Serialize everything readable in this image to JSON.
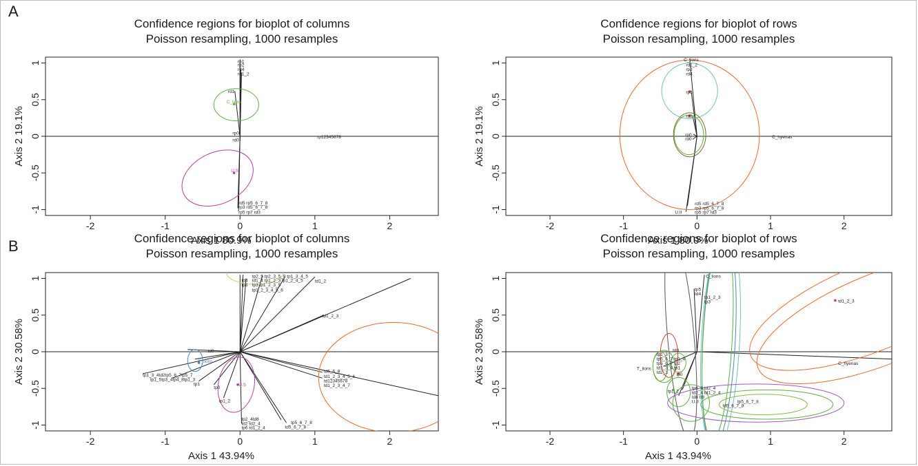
{
  "panel_labels": {
    "a": "A",
    "b": "B"
  },
  "chart_data": [
    {
      "type": "scatter",
      "title": "Confidence regions for bioplot of columns",
      "subtitle": "Poisson resampling, 1000 resamples",
      "xlabel": "Axis 1 80.9%",
      "ylabel": "Axis 2 19.1%",
      "xlim": [
        -2.6,
        2.65
      ],
      "ylim": [
        -1.08,
        1.08
      ],
      "xticks": [
        -2,
        -1,
        0,
        1,
        2
      ],
      "yticks": [
        -1.0,
        -0.5,
        0.0,
        0.5,
        1.0
      ],
      "hline": 0,
      "rays": [
        {
          "x": 0.0,
          "y": 1.05
        },
        {
          "x": 0.0,
          "y": 0.98
        },
        {
          "x": 0.01,
          "y": 0.91
        },
        {
          "x": 0.02,
          "y": 0.87
        },
        {
          "x": -0.07,
          "y": 0.62
        },
        {
          "x": -0.01,
          "y": 0.05
        },
        {
          "x": 0.0,
          "y": -0.04
        },
        {
          "x": -0.02,
          "y": -1.02
        },
        {
          "x": -0.03,
          "y": -0.98
        }
      ],
      "ellipses": [
        {
          "cx": -0.05,
          "cy": 0.43,
          "rx": 0.3,
          "ry": 0.22,
          "rot": 0,
          "color": "#5bb040"
        },
        {
          "cx": -0.3,
          "cy": -0.57,
          "rx": 0.5,
          "ry": 0.35,
          "rot": 25,
          "color": "#b83ea4"
        }
      ],
      "labels": [
        {
          "text": "rp1",
          "x": -0.03,
          "y": 1.03
        },
        {
          "text": "rp2",
          "x": -0.03,
          "y": 0.98
        },
        {
          "text": "rd4",
          "x": -0.03,
          "y": 0.92
        },
        {
          "text": "rd1_2",
          "x": -0.03,
          "y": 0.86
        },
        {
          "text": "rd1",
          "x": -0.16,
          "y": 0.62
        },
        {
          "text": "C_lions",
          "x": -0.18,
          "y": 0.48,
          "color": "#5bb040"
        },
        {
          "text": "rp0",
          "x": -0.1,
          "y": 0.05
        },
        {
          "text": "rd0",
          "x": -0.1,
          "y": -0.04
        },
        {
          "text": "rp12345678",
          "x": 1.03,
          "y": 0.0
        },
        {
          "text": "U.S",
          "x": -0.12,
          "y": -0.46,
          "color": "#b83ea4"
        },
        {
          "text": "rd5 rp5_6_7_8",
          "x": -0.02,
          "y": -0.9
        },
        {
          "text": "rp3 rd5_6_7_8",
          "x": -0.02,
          "y": -0.96
        },
        {
          "text": "rp5 rp7 rd3",
          "x": -0.02,
          "y": -1.03
        }
      ],
      "points": [
        {
          "x": -0.08,
          "y": 0.44,
          "color": "#5bb040"
        },
        {
          "x": -0.08,
          "y": -0.5,
          "color": "#b83ea4"
        }
      ]
    },
    {
      "type": "scatter",
      "title": "Confidence regions for bioplot of rows",
      "subtitle": "Poisson resampling, 1000 resamples",
      "xlabel": "Axis 1 80.9%",
      "ylabel": "Axis 2 19.1%",
      "xlim": [
        -2.6,
        2.65
      ],
      "ylim": [
        -1.08,
        1.08
      ],
      "xticks": [
        -2,
        -1,
        0,
        1,
        2
      ],
      "yticks": [
        -1.0,
        -0.5,
        0.0,
        0.5,
        1.0
      ],
      "hline": 0,
      "rays": [
        {
          "x": -0.1,
          "y": 1.06
        },
        {
          "x": -0.08,
          "y": 0.62
        },
        {
          "x": -0.06,
          "y": 0.28
        },
        {
          "x": -0.05,
          "y": 0.03
        },
        {
          "x": -0.06,
          "y": -0.04
        },
        {
          "x": -0.15,
          "y": -1.03
        },
        {
          "x": -0.13,
          "y": -0.95
        }
      ],
      "ellipses": [
        {
          "cx": -0.1,
          "cy": 0.62,
          "rx": 0.38,
          "ry": 0.38,
          "rot": 0,
          "color": "#6fc2b8"
        },
        {
          "cx": -0.1,
          "cy": 0.02,
          "rx": 0.95,
          "ry": 1.02,
          "rot": 0,
          "color": "#f06a2d"
        },
        {
          "cx": -0.1,
          "cy": 0.02,
          "rx": 0.22,
          "ry": 0.3,
          "rot": 0,
          "color": "#7e6a2c"
        },
        {
          "cx": -0.11,
          "cy": 0.02,
          "rx": 0.2,
          "ry": 0.27,
          "rot": 0,
          "color": "#5bb040"
        }
      ],
      "labels": [
        {
          "text": "C_lions",
          "x": -0.18,
          "y": 1.05
        },
        {
          "text": "rd1_2",
          "x": -0.15,
          "y": 0.98
        },
        {
          "text": "rp2",
          "x": -0.15,
          "y": 0.92
        },
        {
          "text": "rd4",
          "x": -0.15,
          "y": 0.86
        },
        {
          "text": "rp1",
          "x": -0.15,
          "y": 0.61
        },
        {
          "text": "rd1",
          "x": -0.15,
          "y": 0.28
        },
        {
          "text": "rp0",
          "x": -0.16,
          "y": 0.03
        },
        {
          "text": "rd0",
          "x": -0.16,
          "y": -0.03
        },
        {
          "text": "C_hyenas",
          "x": 1.02,
          "y": 0.0
        },
        {
          "text": "rd5 rd5_6_7_8",
          "x": -0.03,
          "y": -0.91
        },
        {
          "text": "rp3 rp5_6_7_8",
          "x": -0.03,
          "y": -0.97
        },
        {
          "text": "rp5 rp7 rd3",
          "x": -0.03,
          "y": -1.03
        },
        {
          "text": "U.II",
          "x": -0.3,
          "y": -1.03
        }
      ],
      "points": [
        {
          "x": -0.1,
          "y": 0.28,
          "color": "#d2462c"
        },
        {
          "x": -0.1,
          "y": 0.61,
          "color": "#d2462c"
        }
      ]
    },
    {
      "type": "scatter",
      "title": "Confidence regions for bioplot of columns",
      "subtitle": "Poisson resampling, 1000 resamples",
      "xlabel": "Axis 1 43.94%",
      "ylabel": "Axis 2 30.58%",
      "xlim": [
        -2.6,
        2.65
      ],
      "ylim": [
        -1.08,
        1.08
      ],
      "xticks": [
        -2,
        -1,
        0,
        1,
        2
      ],
      "yticks": [
        -1.0,
        -0.5,
        0.0,
        0.5,
        1.0
      ],
      "hline": 0,
      "rays": [
        {
          "x": 0.04,
          "y": 1.05
        },
        {
          "x": 0.0,
          "y": 1.05
        },
        {
          "x": 0.08,
          "y": 1.0
        },
        {
          "x": 0.3,
          "y": 1.04
        },
        {
          "x": 0.6,
          "y": 1.02
        },
        {
          "x": 1.0,
          "y": 1.02
        },
        {
          "x": 1.12,
          "y": 0.5
        },
        {
          "x": 2.28,
          "y": 1.0
        },
        {
          "x": 2.65,
          "y": -0.6
        },
        {
          "x": 1.1,
          "y": -0.28
        },
        {
          "x": 1.1,
          "y": -0.36
        },
        {
          "x": 0.62,
          "y": -0.97
        },
        {
          "x": 0.55,
          "y": -0.93
        },
        {
          "x": 0.02,
          "y": -0.98
        },
        {
          "x": -0.22,
          "y": -0.63
        },
        {
          "x": -0.35,
          "y": -0.45
        },
        {
          "x": -0.55,
          "y": -0.4
        },
        {
          "x": -0.9,
          "y": -0.36
        },
        {
          "x": -1.3,
          "y": -0.3
        },
        {
          "x": -0.6,
          "y": -0.1
        },
        {
          "x": -0.7,
          "y": 0.03
        }
      ],
      "ellipses": [
        {
          "cx": 0.2,
          "cy": 1.08,
          "rx": 0.38,
          "ry": 0.16,
          "rot": 0,
          "color": "#b8d66a"
        },
        {
          "cx": -0.05,
          "cy": -0.45,
          "rx": 0.24,
          "ry": 0.38,
          "rot": -10,
          "color": "#b83ea4"
        },
        {
          "cx": -0.6,
          "cy": -0.12,
          "rx": 0.1,
          "ry": 0.15,
          "rot": 0,
          "color": "#4a86c8"
        },
        {
          "cx": 2.05,
          "cy": -0.35,
          "rx": 1.0,
          "ry": 0.75,
          "rot": 0,
          "color": "#f06a2d"
        }
      ],
      "labels": [
        {
          "text": "tp2_5 tp2_3_5_8 tp1_3_4_5",
          "x": 0.16,
          "y": 1.04
        },
        {
          "text": "td4",
          "x": 0.02,
          "y": 0.98
        },
        {
          "text": "td1_4 tp1_2_3 tp1_2_4_5",
          "x": 0.16,
          "y": 0.98
        },
        {
          "text": "tp5",
          "x": 0.02,
          "y": 0.92
        },
        {
          "text": "tp3 tp1_2_3_5",
          "x": 0.16,
          "y": 0.92
        },
        {
          "text": "tp1_2_3_4_5_6",
          "x": 0.16,
          "y": 0.85
        },
        {
          "text": "td1_2",
          "x": 1.0,
          "y": 0.97
        },
        {
          "text": "td1_2_3",
          "x": 1.1,
          "y": 0.5
        },
        {
          "text": "td0",
          "x": -0.43,
          "y": 0.02
        },
        {
          "text": "T_lions",
          "x": -0.56,
          "y": -0.12,
          "color": "#4a86c8"
        },
        {
          "text": "td5_6_8",
          "x": 1.12,
          "y": -0.26
        },
        {
          "text": "td1_2_3_4_5_6",
          "x": 1.12,
          "y": -0.33
        },
        {
          "text": "td12345678",
          "x": 1.12,
          "y": -0.39
        },
        {
          "text": "td1_2_3_4_7",
          "x": 1.12,
          "y": -0.45
        },
        {
          "text": "tp1_3_4td2tp5_6_7tp5_7",
          "x": -1.3,
          "y": -0.31
        },
        {
          "text": "tp1_5tp3_4tp4_8tp1_3",
          "x": -1.2,
          "y": -0.37
        },
        {
          "text": "tp1",
          "x": -0.62,
          "y": -0.43
        },
        {
          "text": "tp0",
          "x": -0.35,
          "y": -0.48
        },
        {
          "text": "U.S",
          "x": -0.02,
          "y": -0.44,
          "color": "#b83ea4"
        },
        {
          "text": "tp1_2",
          "x": -0.28,
          "y": -0.66
        },
        {
          "text": "tp2_4td8",
          "x": 0.02,
          "y": -0.91
        },
        {
          "text": "td2 td2_4",
          "x": 0.02,
          "y": -0.97
        },
        {
          "text": "tp6 td1_2_4",
          "x": 0.02,
          "y": -1.03
        },
        {
          "text": "tp5_6_7_8",
          "x": 0.68,
          "y": -0.96
        },
        {
          "text": "td5_6_7_8",
          "x": 0.6,
          "y": -1.02
        }
      ],
      "points": [
        {
          "x": -0.55,
          "y": -0.15,
          "color": "#4a86c8"
        },
        {
          "x": -0.03,
          "y": -0.45,
          "color": "#b83ea4"
        }
      ]
    },
    {
      "type": "scatter",
      "title": "Confidence regions for bioplot of rows",
      "subtitle": "Poisson resampling, 1000 resamples",
      "xlabel": "Axis 1 43.94%",
      "ylabel": "Axis 2 30.58%",
      "xlim": [
        -2.6,
        2.65
      ],
      "ylim": [
        -1.08,
        1.08
      ],
      "xticks": [
        -2,
        -1,
        0,
        1,
        2
      ],
      "yticks": [
        -1.0,
        -0.5,
        0.0,
        0.5,
        1.0
      ],
      "hline": 0,
      "rays": [
        {
          "x": 0.1,
          "y": 1.05
        },
        {
          "x": -0.04,
          "y": 0.86
        },
        {
          "x": 2.65,
          "y": -0.1
        },
        {
          "x": -0.25,
          "y": -0.6
        },
        {
          "x": -0.2,
          "y": -0.52
        },
        {
          "x": -0.45,
          "y": -0.2
        }
      ],
      "ellipses": [
        {
          "cx": -0.22,
          "cy": 0.2,
          "rx": 0.18,
          "ry": 1.4,
          "rot": 5,
          "color": "#555555"
        },
        {
          "cx": 0.3,
          "cy": 0.15,
          "rx": 0.22,
          "ry": 1.45,
          "rot": -3,
          "color": "#4a86c8"
        },
        {
          "cx": 0.32,
          "cy": 0.15,
          "rx": 0.26,
          "ry": 1.5,
          "rot": -3,
          "color": "#6fc2b8"
        },
        {
          "cx": 0.28,
          "cy": 0.2,
          "rx": 0.2,
          "ry": 1.4,
          "rot": -3,
          "color": "#5bb040"
        },
        {
          "cx": 2.4,
          "cy": 0.62,
          "rx": 1.8,
          "ry": 0.6,
          "rot": 22,
          "color": "#f06a2d"
        },
        {
          "cx": 2.5,
          "cy": 0.45,
          "rx": 1.8,
          "ry": 0.62,
          "rot": 22,
          "color": "#f06a2d"
        },
        {
          "cx": -0.5,
          "cy": -0.2,
          "rx": 0.1,
          "ry": 0.2,
          "rot": 0,
          "color": "#5bb040"
        },
        {
          "cx": -0.45,
          "cy": -0.2,
          "rx": 0.15,
          "ry": 0.22,
          "rot": 0,
          "color": "#5bb040"
        },
        {
          "cx": -0.38,
          "cy": -0.05,
          "rx": 0.12,
          "ry": 0.3,
          "rot": 0,
          "color": "#d2462c"
        },
        {
          "cx": -0.25,
          "cy": -0.15,
          "rx": 0.1,
          "ry": 0.13,
          "rot": 0,
          "color": "#5bb040"
        },
        {
          "cx": -0.08,
          "cy": -0.7,
          "rx": 0.25,
          "ry": 0.25,
          "rot": 0,
          "color": "#5bb040"
        },
        {
          "cx": -0.25,
          "cy": -0.55,
          "rx": 0.16,
          "ry": 0.2,
          "rot": 0,
          "color": "#5bb040"
        },
        {
          "cx": 0.8,
          "cy": -0.7,
          "rx": 1.2,
          "ry": 0.26,
          "rot": 0,
          "color": "#9b59c6"
        },
        {
          "cx": 0.95,
          "cy": -0.72,
          "rx": 0.9,
          "ry": 0.2,
          "rot": 0,
          "color": "#5bb040"
        },
        {
          "cx": 0.9,
          "cy": -0.72,
          "rx": 0.6,
          "ry": 0.14,
          "rot": 0,
          "color": "#7fbf40"
        }
      ],
      "labels": [
        {
          "text": "C_lions",
          "x": 0.12,
          "y": 1.04
        },
        {
          "text": "tp5",
          "x": -0.03,
          "y": 0.86
        },
        {
          "text": "td4",
          "x": -0.03,
          "y": 0.8
        },
        {
          "text": "tp1_2_3",
          "x": 0.1,
          "y": 0.75
        },
        {
          "text": "tp3",
          "x": 0.1,
          "y": 0.69
        },
        {
          "text": "td1_2_3",
          "x": 1.92,
          "y": 0.7
        },
        {
          "text": "C_hyenas",
          "x": 1.92,
          "y": -0.15
        },
        {
          "text": "td0",
          "x": -0.33,
          "y": 0.03
        },
        {
          "text": "tp1_3",
          "x": -0.55,
          "y": -0.03
        },
        {
          "text": "tp5_6_7 tp1_4",
          "x": -0.55,
          "y": -0.09
        },
        {
          "text": "tp5_6_7 tp2",
          "x": -0.55,
          "y": -0.15
        },
        {
          "text": "td1_3_4 tp1",
          "x": -0.55,
          "y": -0.21
        },
        {
          "text": "td2_3",
          "x": -0.55,
          "y": -0.27
        },
        {
          "text": "T_lions",
          "x": -0.82,
          "y": -0.22
        },
        {
          "text": "tp0",
          "x": -0.28,
          "y": -0.3
        },
        {
          "text": "tp1_2",
          "x": -0.4,
          "y": -0.53
        },
        {
          "text": "tp6_8 td2_4",
          "x": -0.07,
          "y": -0.49
        },
        {
          "text": "td2_4 td1_2_4",
          "x": -0.07,
          "y": -0.55
        },
        {
          "text": "td8 tt8",
          "x": -0.07,
          "y": -0.61
        },
        {
          "text": "U.II",
          "x": -0.07,
          "y": -0.67
        },
        {
          "text": "tp5_6_7_8",
          "x": 0.55,
          "y": -0.67
        },
        {
          "text": "td5_6_7_8",
          "x": 0.35,
          "y": -0.73
        }
      ],
      "points": [
        {
          "x": 1.88,
          "y": 0.7,
          "color": "#d2462c"
        },
        {
          "x": -0.25,
          "y": -0.3,
          "color": "#d2462c"
        },
        {
          "x": -0.32,
          "y": -0.52,
          "color": "#5bb040"
        }
      ]
    }
  ]
}
